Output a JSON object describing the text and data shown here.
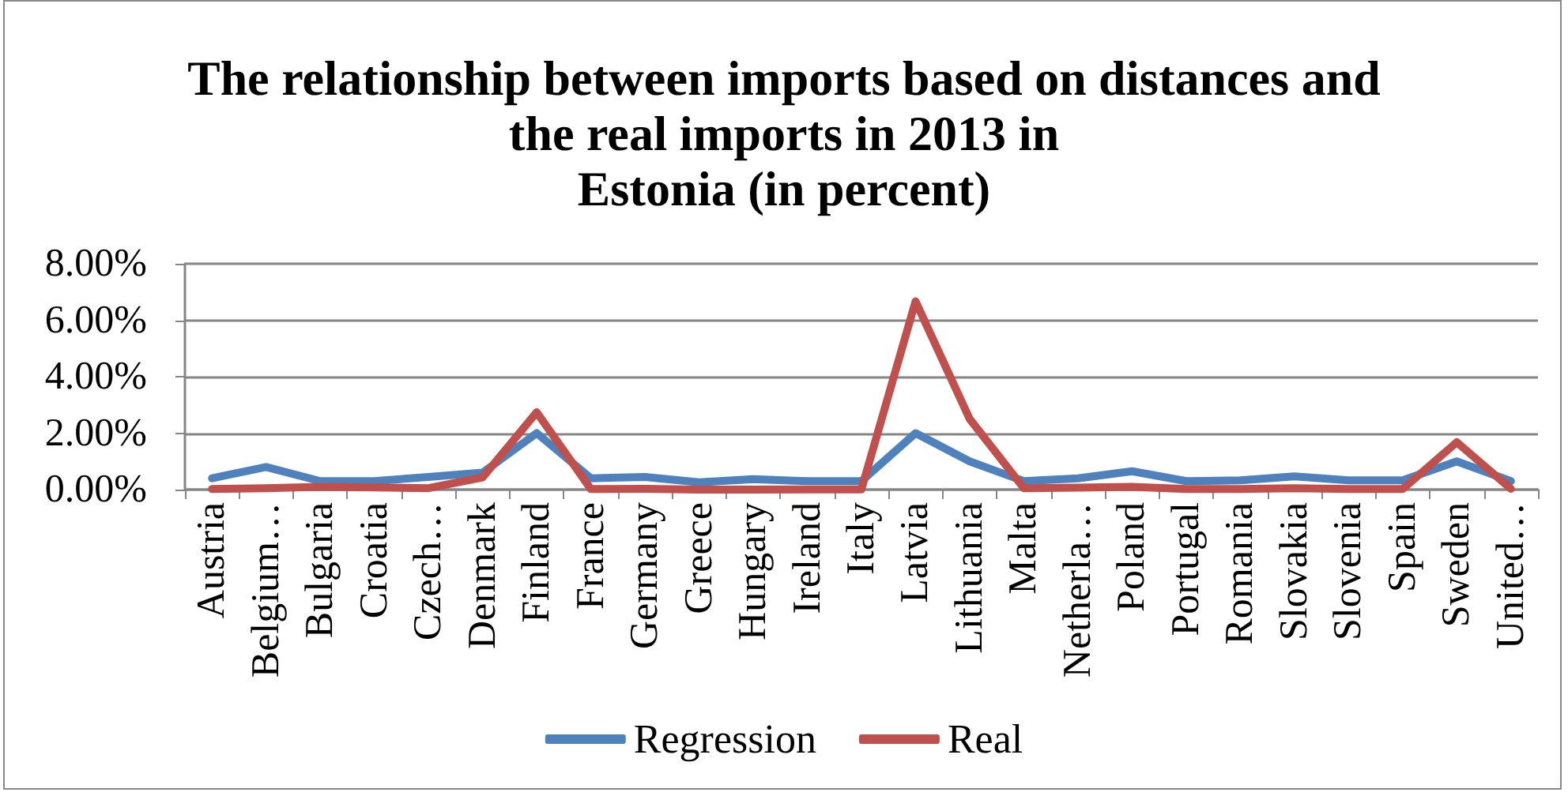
{
  "chart_data": {
    "type": "line",
    "title": "The relationship between imports based on distances and\nthe real imports in 2013 in\nEstonia (in percent)",
    "categories": [
      "Austria",
      "Belgium…",
      "Bulgaria",
      "Croatia",
      "Czech…",
      "Denmark",
      "Finland",
      "France",
      "Germany",
      "Greece",
      "Hungary",
      "Ireland",
      "Italy",
      "Latvia",
      "Lithuania",
      "Malta",
      "Netherla…",
      "Poland",
      "Portugal",
      "Romania",
      "Slovakia",
      "Slovenia",
      "Spain",
      "Sweden",
      "United…"
    ],
    "series": [
      {
        "name": "Regression",
        "color": "#4f81bd",
        "values": [
          0.4,
          0.8,
          0.3,
          0.3,
          0.45,
          0.6,
          2.0,
          0.4,
          0.45,
          0.26,
          0.37,
          0.3,
          0.3,
          2.0,
          1.0,
          0.3,
          0.4,
          0.65,
          0.3,
          0.33,
          0.47,
          0.33,
          0.33,
          1.0,
          0.3
        ]
      },
      {
        "name": "Real",
        "color": "#c0504d",
        "values": [
          0.02,
          0.05,
          0.1,
          0.08,
          0.05,
          0.43,
          2.74,
          0.02,
          0.03,
          0.0,
          0.0,
          0.01,
          0.01,
          6.67,
          2.5,
          0.05,
          0.07,
          0.1,
          0.02,
          0.02,
          0.05,
          0.02,
          0.02,
          1.68,
          0.03
        ]
      }
    ],
    "ylim": [
      0,
      8
    ],
    "yticks": [
      {
        "value": 0,
        "label": "0.00%"
      },
      {
        "value": 2,
        "label": "2.00%"
      },
      {
        "value": 4,
        "label": "4.00%"
      },
      {
        "value": 6,
        "label": "6.00%"
      },
      {
        "value": 8,
        "label": "8.00%"
      }
    ],
    "grid": "y",
    "legend": "bottom",
    "marker": "none",
    "line_style": "solid"
  }
}
